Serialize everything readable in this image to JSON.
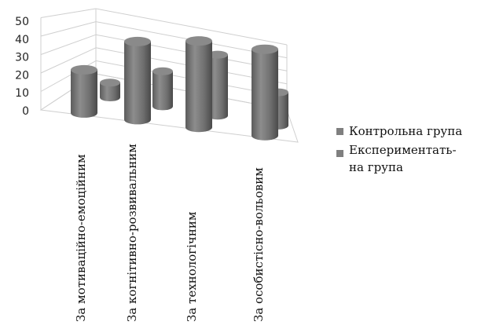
{
  "chart_data": {
    "type": "bar",
    "style": "3d-cylinder",
    "categories": [
      "За мотиваційно-емоційним",
      "За когнітивно-розвивальним",
      "За технологічним",
      "За особистісно-вольовим"
    ],
    "series": [
      {
        "name": "Контрольна група",
        "values": [
          21,
          38,
          42,
          42
        ],
        "color": "#7f7f7f"
      },
      {
        "name": "Експериментальна група",
        "values": [
          8,
          19,
          33,
          18
        ],
        "color": "#7f7f7f"
      }
    ],
    "legend_lines": [
      [
        "Контрольна група"
      ],
      [
        "Експериментать-",
        "на група"
      ]
    ],
    "ylim": [
      0,
      50
    ],
    "yticks": [
      0,
      10,
      20,
      30,
      40,
      50
    ],
    "grid": true,
    "legend": "right",
    "xlabel": "",
    "ylabel": "",
    "title": ""
  }
}
